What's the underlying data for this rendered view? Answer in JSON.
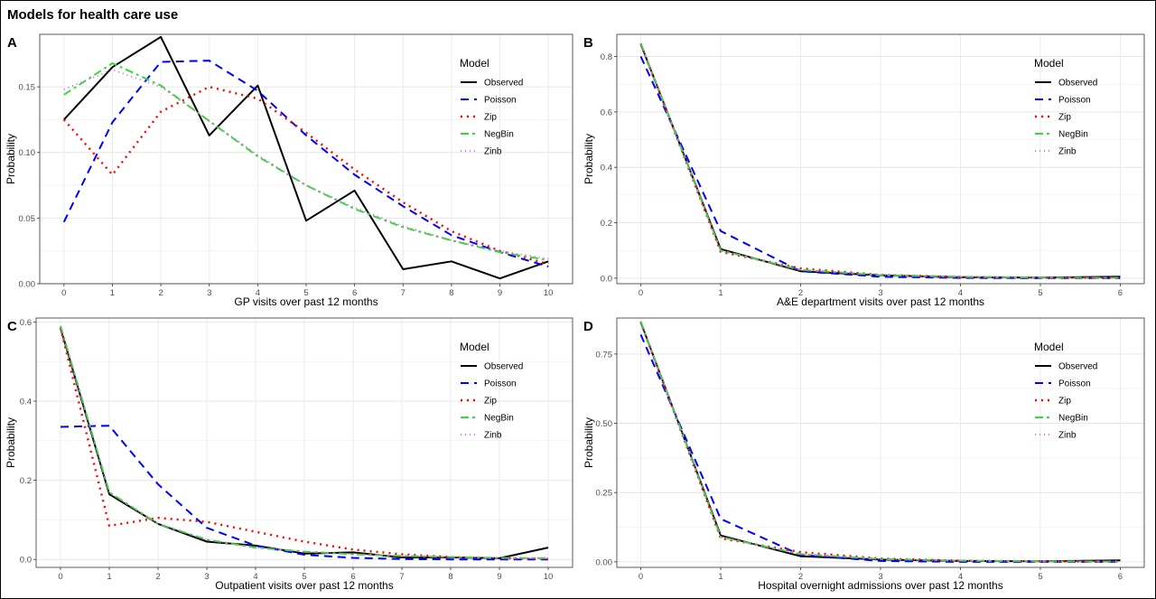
{
  "title": "Models for health care use",
  "series_styles": [
    {
      "name": "Observed",
      "color": "#000000",
      "dash": "",
      "width": 2
    },
    {
      "name": "Poisson",
      "color": "#0000ff",
      "dash": "9,6",
      "width": 2
    },
    {
      "name": "Zip",
      "color": "#ff0000",
      "dash": "2,5",
      "width": 2.4
    },
    {
      "name": "NegBin",
      "color": "#33dd33",
      "dash": "9,4,3,4",
      "width": 2
    },
    {
      "name": "Zinb",
      "color": "#dd55ff",
      "dash": "1,4",
      "width": 1.8
    }
  ],
  "chart_data": [
    {
      "type": "line",
      "panel_label": "A",
      "xlabel": "GP visits over past 12 months",
      "ylabel": "Probability",
      "legend_title": "Model",
      "legend_position": "top-right",
      "grid": true,
      "x": [
        0,
        1,
        2,
        3,
        4,
        5,
        6,
        7,
        8,
        9,
        10
      ],
      "xlim": [
        0,
        10
      ],
      "ylim": [
        0,
        0.19
      ],
      "xticks": [
        "0",
        "1",
        "2",
        "3",
        "4",
        "5",
        "6",
        "7",
        "8",
        "9",
        "10"
      ],
      "yticks": [
        0,
        0.05,
        0.1,
        0.15
      ],
      "ytick_labels": [
        "0.00",
        "0.05",
        "0.10",
        "0.15"
      ],
      "series": [
        {
          "name": "Observed",
          "values": [
            0.125,
            0.165,
            0.188,
            0.113,
            0.151,
            0.048,
            0.071,
            0.011,
            0.017,
            0.004,
            0.017
          ]
        },
        {
          "name": "Poisson",
          "values": [
            0.047,
            0.123,
            0.169,
            0.17,
            0.147,
            0.113,
            0.083,
            0.059,
            0.037,
            0.024,
            0.013
          ]
        },
        {
          "name": "Zip",
          "values": [
            0.125,
            0.083,
            0.131,
            0.15,
            0.141,
            0.115,
            0.087,
            0.062,
            0.04,
            0.025,
            0.015
          ]
        },
        {
          "name": "NegBin",
          "values": [
            0.144,
            0.168,
            0.151,
            0.124,
            0.097,
            0.075,
            0.057,
            0.043,
            0.033,
            0.024,
            0.018
          ]
        },
        {
          "name": "Zinb",
          "values": [
            0.148,
            0.163,
            0.15,
            0.124,
            0.098,
            0.075,
            0.058,
            0.044,
            0.033,
            0.025,
            0.019
          ]
        }
      ]
    },
    {
      "type": "line",
      "panel_label": "B",
      "xlabel": "A&E department visits over past 12 months",
      "ylabel": "Probability",
      "legend_title": "Model",
      "legend_position": "top-right",
      "grid": true,
      "x": [
        0,
        1,
        2,
        3,
        4,
        5,
        6
      ],
      "xlim": [
        0,
        6
      ],
      "ylim": [
        -0.02,
        0.88
      ],
      "xticks": [
        "0",
        "1",
        "2",
        "3",
        "4",
        "5",
        "6"
      ],
      "yticks": [
        0,
        0.2,
        0.4,
        0.6,
        0.8
      ],
      "ytick_labels": [
        "0.0",
        "0.2",
        "0.4",
        "0.6",
        "0.8"
      ],
      "series": [
        {
          "name": "Observed",
          "values": [
            0.845,
            0.105,
            0.025,
            0.01,
            0.003,
            0.002,
            0.005
          ]
        },
        {
          "name": "Poisson",
          "values": [
            0.8,
            0.17,
            0.025,
            0.005,
            0.001,
            0.0,
            0.0
          ]
        },
        {
          "name": "Zip",
          "values": [
            0.845,
            0.095,
            0.035,
            0.012,
            0.004,
            0.002,
            0.001
          ]
        },
        {
          "name": "NegBin",
          "values": [
            0.848,
            0.1,
            0.03,
            0.011,
            0.005,
            0.002,
            0.001
          ]
        },
        {
          "name": "Zinb",
          "values": [
            0.846,
            0.1,
            0.03,
            0.012,
            0.005,
            0.002,
            0.001
          ]
        }
      ]
    },
    {
      "type": "line",
      "panel_label": "C",
      "xlabel": "Outpatient visits over past 12 months",
      "ylabel": "Probability",
      "legend_title": "Model",
      "legend_position": "top-right",
      "grid": true,
      "x": [
        0,
        1,
        2,
        3,
        4,
        5,
        6,
        7,
        8,
        9,
        10
      ],
      "xlim": [
        0,
        10
      ],
      "ylim": [
        -0.02,
        0.61
      ],
      "xticks": [
        "0",
        "1",
        "2",
        "3",
        "4",
        "5",
        "6",
        "7",
        "8",
        "9",
        "10"
      ],
      "yticks": [
        0,
        0.2,
        0.4,
        0.6
      ],
      "ytick_labels": [
        "0.0",
        "0.2",
        "0.4",
        "0.6"
      ],
      "series": [
        {
          "name": "Observed",
          "values": [
            0.585,
            0.165,
            0.09,
            0.045,
            0.035,
            0.015,
            0.018,
            0.005,
            0.005,
            0.003,
            0.03
          ]
        },
        {
          "name": "Poisson",
          "values": [
            0.335,
            0.338,
            0.19,
            0.08,
            0.035,
            0.012,
            0.004,
            0.001,
            0.0,
            0.0,
            0.0
          ]
        },
        {
          "name": "Zip",
          "values": [
            0.585,
            0.085,
            0.105,
            0.095,
            0.07,
            0.045,
            0.025,
            0.013,
            0.006,
            0.003,
            0.001
          ]
        },
        {
          "name": "NegBin",
          "values": [
            0.59,
            0.17,
            0.09,
            0.05,
            0.03,
            0.02,
            0.013,
            0.009,
            0.006,
            0.004,
            0.003
          ]
        },
        {
          "name": "Zinb",
          "values": [
            0.588,
            0.168,
            0.09,
            0.05,
            0.03,
            0.02,
            0.013,
            0.009,
            0.006,
            0.004,
            0.003
          ]
        }
      ]
    },
    {
      "type": "line",
      "panel_label": "D",
      "xlabel": "Hospital overnight admissions over past 12 months",
      "ylabel": "Probability",
      "legend_title": "Model",
      "legend_position": "top-right",
      "grid": true,
      "x": [
        0,
        1,
        2,
        3,
        4,
        5,
        6
      ],
      "xlim": [
        0,
        6
      ],
      "ylim": [
        -0.02,
        0.88
      ],
      "xticks": [
        "0",
        "1",
        "2",
        "3",
        "4",
        "5",
        "6"
      ],
      "yticks": [
        0,
        0.25,
        0.5,
        0.75
      ],
      "ytick_labels": [
        "0.00",
        "0.25",
        "0.50",
        "0.75"
      ],
      "series": [
        {
          "name": "Observed",
          "values": [
            0.865,
            0.095,
            0.02,
            0.008,
            0.003,
            0.002,
            0.005
          ]
        },
        {
          "name": "Poisson",
          "values": [
            0.82,
            0.155,
            0.025,
            0.003,
            0.0,
            0.0,
            0.0
          ]
        },
        {
          "name": "Zip",
          "values": [
            0.865,
            0.085,
            0.035,
            0.012,
            0.004,
            0.002,
            0.001
          ]
        },
        {
          "name": "NegBin",
          "values": [
            0.868,
            0.09,
            0.028,
            0.01,
            0.004,
            0.002,
            0.001
          ]
        },
        {
          "name": "Zinb",
          "values": [
            0.866,
            0.09,
            0.028,
            0.01,
            0.004,
            0.002,
            0.001
          ]
        }
      ]
    }
  ]
}
